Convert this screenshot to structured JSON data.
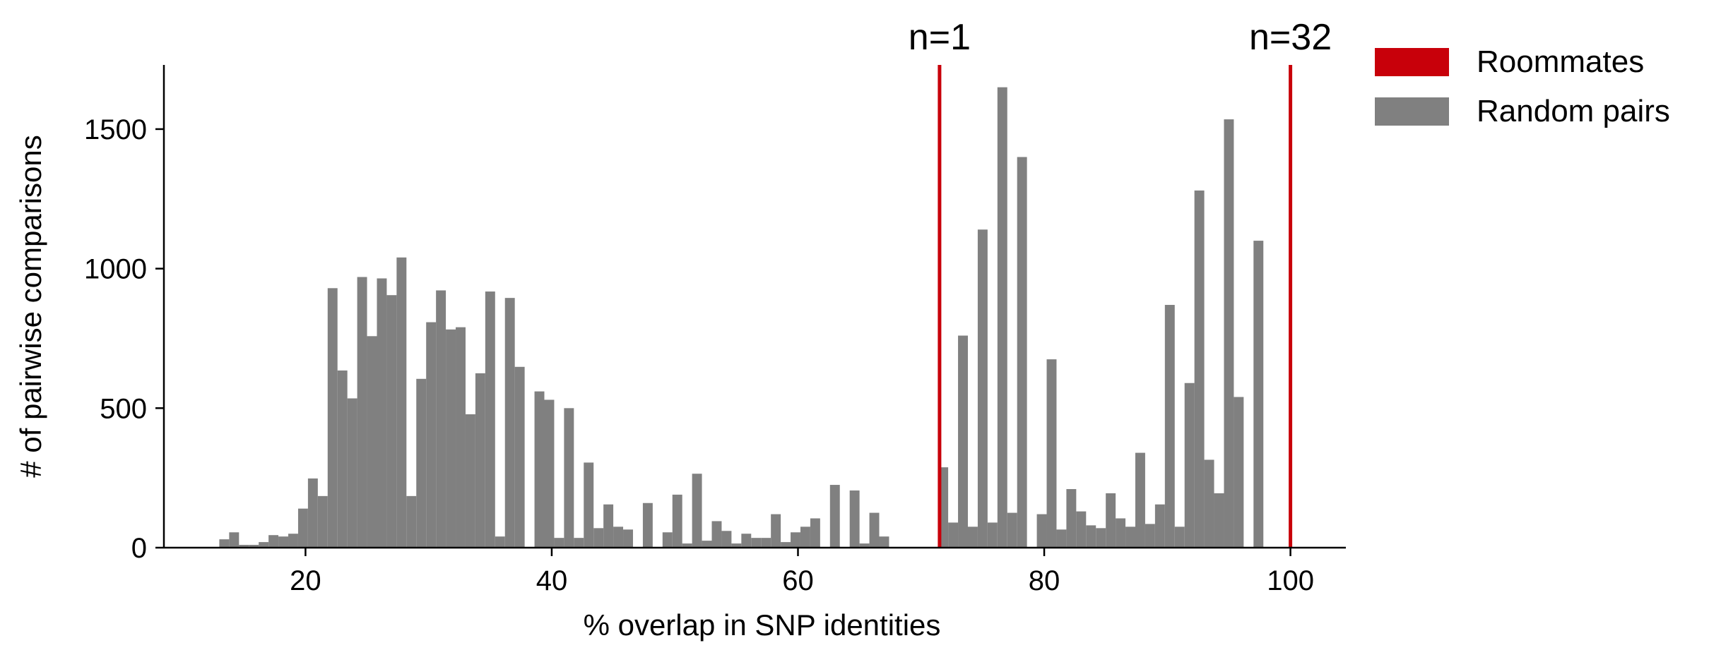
{
  "chart_data": {
    "type": "bar",
    "xlabel": "% overlap in SNP identities",
    "ylabel": "# of pairwise comparisons",
    "xlim": [
      8.5,
      104.5
    ],
    "ylim": [
      0,
      1730
    ],
    "xticks": [
      20,
      40,
      60,
      80,
      100
    ],
    "yticks": [
      0,
      500,
      1000,
      1500
    ],
    "grid": false,
    "legend_position": "outside-top-right",
    "colors": {
      "roommates": "#c8000a",
      "random_pairs": "#808080"
    },
    "legend": [
      {
        "name": "Roommates",
        "color": "#c8000a"
      },
      {
        "name": "Random pairs",
        "color": "#808080"
      }
    ],
    "series": [
      {
        "name": "Random pairs",
        "bin_width": 0.8,
        "bins": [
          [
            13.0,
            30
          ],
          [
            13.8,
            55
          ],
          [
            14.6,
            10
          ],
          [
            15.4,
            10
          ],
          [
            16.2,
            20
          ],
          [
            17.0,
            45
          ],
          [
            17.8,
            40
          ],
          [
            18.6,
            50
          ],
          [
            19.4,
            140
          ],
          [
            20.2,
            248
          ],
          [
            21.0,
            185
          ],
          [
            21.8,
            930
          ],
          [
            22.6,
            635
          ],
          [
            23.4,
            535
          ],
          [
            24.2,
            970
          ],
          [
            25.0,
            758
          ],
          [
            25.8,
            965
          ],
          [
            26.6,
            905
          ],
          [
            27.4,
            1040
          ],
          [
            28.2,
            185
          ],
          [
            29.0,
            605
          ],
          [
            29.8,
            808
          ],
          [
            30.6,
            922
          ],
          [
            31.4,
            782
          ],
          [
            32.2,
            790
          ],
          [
            33.0,
            478
          ],
          [
            33.8,
            625
          ],
          [
            34.6,
            918
          ],
          [
            35.4,
            40
          ],
          [
            36.2,
            895
          ],
          [
            37.0,
            648
          ],
          [
            38.6,
            560
          ],
          [
            39.4,
            530
          ],
          [
            40.2,
            35
          ],
          [
            41.0,
            500
          ],
          [
            41.8,
            35
          ],
          [
            42.6,
            305
          ],
          [
            43.4,
            70
          ],
          [
            44.2,
            155
          ],
          [
            45.0,
            75
          ],
          [
            45.8,
            65
          ],
          [
            47.4,
            160
          ],
          [
            49.0,
            55
          ],
          [
            49.8,
            190
          ],
          [
            50.6,
            15
          ],
          [
            51.4,
            265
          ],
          [
            52.2,
            25
          ],
          [
            53.0,
            95
          ],
          [
            53.8,
            60
          ],
          [
            54.6,
            15
          ],
          [
            55.4,
            50
          ],
          [
            56.2,
            35
          ],
          [
            57.0,
            35
          ],
          [
            57.8,
            120
          ],
          [
            58.6,
            20
          ],
          [
            59.4,
            55
          ],
          [
            60.2,
            75
          ],
          [
            61.0,
            105
          ],
          [
            62.6,
            225
          ],
          [
            64.2,
            205
          ],
          [
            65.0,
            15
          ],
          [
            65.8,
            125
          ],
          [
            66.6,
            40
          ],
          [
            71.4,
            288
          ],
          [
            72.2,
            90
          ],
          [
            73.0,
            760
          ],
          [
            73.8,
            75
          ],
          [
            74.6,
            1140
          ],
          [
            75.4,
            90
          ],
          [
            76.2,
            1650
          ],
          [
            77.0,
            125
          ],
          [
            77.8,
            1400
          ],
          [
            79.4,
            120
          ],
          [
            80.2,
            675
          ],
          [
            81.0,
            65
          ],
          [
            81.8,
            210
          ],
          [
            82.6,
            130
          ],
          [
            83.4,
            80
          ],
          [
            84.2,
            70
          ],
          [
            85.0,
            195
          ],
          [
            85.8,
            105
          ],
          [
            86.6,
            75
          ],
          [
            87.4,
            340
          ],
          [
            88.2,
            85
          ],
          [
            89.0,
            155
          ],
          [
            89.8,
            870
          ],
          [
            90.6,
            75
          ],
          [
            91.4,
            590
          ],
          [
            92.2,
            1280
          ],
          [
            93.0,
            315
          ],
          [
            93.8,
            195
          ],
          [
            94.6,
            1535
          ],
          [
            95.4,
            540
          ],
          [
            97.0,
            1100
          ]
        ]
      },
      {
        "name": "Roommates",
        "lines": [
          {
            "x": 71.5,
            "label": "n=1"
          },
          {
            "x": 100.0,
            "label": "n=32"
          }
        ]
      }
    ]
  }
}
